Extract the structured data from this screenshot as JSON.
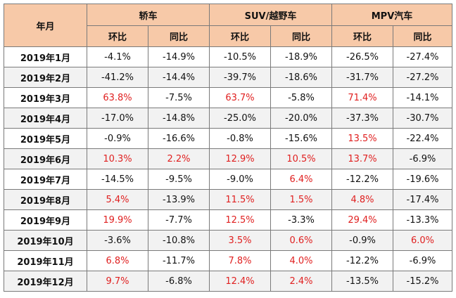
{
  "header": {
    "month_label": "年月",
    "groups": [
      "轿车",
      "SUV/越野车",
      "MPV汽车"
    ],
    "sub_labels": [
      "环比",
      "同比"
    ]
  },
  "rows": [
    {
      "month": "2019年1月",
      "values": [
        "-4.1%",
        "-14.9%",
        "-10.5%",
        "-18.9%",
        "-26.5%",
        "-27.4%"
      ]
    },
    {
      "month": "2019年2月",
      "values": [
        "-41.2%",
        "-14.4%",
        "-39.7%",
        "-18.6%",
        "-31.7%",
        "-27.2%"
      ]
    },
    {
      "month": "2019年3月",
      "values": [
        "63.8%",
        "-7.5%",
        "63.7%",
        "-5.8%",
        "71.4%",
        "-14.1%"
      ]
    },
    {
      "month": "2019年4月",
      "values": [
        "-17.0%",
        "-14.8%",
        "-25.0%",
        "-20.0%",
        "-37.3%",
        "-30.7%"
      ]
    },
    {
      "month": "2019年5月",
      "values": [
        "-0.9%",
        "-16.6%",
        "-0.8%",
        "-15.6%",
        "13.5%",
        "-22.4%"
      ]
    },
    {
      "month": "2019年6月",
      "values": [
        "10.3%",
        "2.2%",
        "12.9%",
        "10.5%",
        "13.7%",
        "-6.9%"
      ]
    },
    {
      "month": "2019年7月",
      "values": [
        "-14.5%",
        "-9.5%",
        "-9.0%",
        "6.4%",
        "-12.2%",
        "-19.6%"
      ]
    },
    {
      "month": "2019年8月",
      "values": [
        "5.4%",
        "-13.9%",
        "11.5%",
        "1.5%",
        "4.8%",
        "-17.4%"
      ]
    },
    {
      "month": "2019年9月",
      "values": [
        "19.9%",
        "-7.7%",
        "12.5%",
        "-3.3%",
        "29.4%",
        "-13.3%"
      ]
    },
    {
      "month": "2019年10月",
      "values": [
        "-3.6%",
        "-10.8%",
        "3.5%",
        "0.6%",
        "-0.9%",
        "6.0%"
      ]
    },
    {
      "month": "2019年11月",
      "values": [
        "6.8%",
        "-11.7%",
        "7.8%",
        "4.0%",
        "-12.2%",
        "-6.9%"
      ]
    },
    {
      "month": "2019年12月",
      "values": [
        "9.7%",
        "-6.8%",
        "12.4%",
        "2.4%",
        "-13.5%",
        "-15.2%"
      ]
    }
  ],
  "colors": {
    "header_bg": "#f7c9a8",
    "positive_text": "#e02020",
    "negative_text": "#111111",
    "alt_row_bg": "#f2f2f2"
  }
}
